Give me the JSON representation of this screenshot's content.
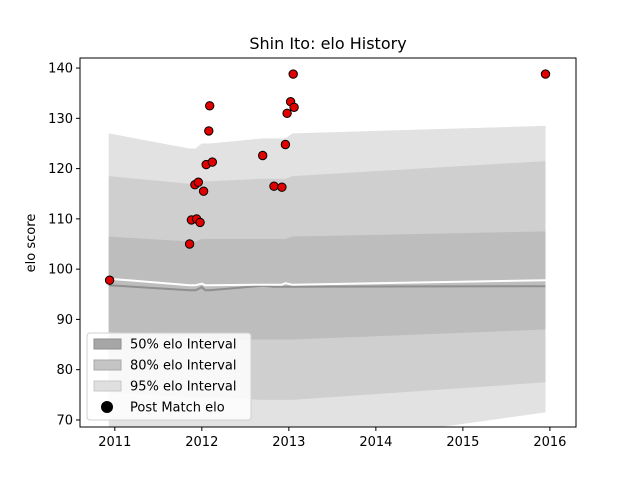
{
  "chart_data": {
    "type": "scatter",
    "title": "Shin Ito: elo History",
    "ylabel": "elo score",
    "xlabel": "",
    "xlim": [
      2010.6,
      2016.3
    ],
    "ylim": [
      68.6,
      142.0
    ],
    "xticks": [
      2011,
      2012,
      2013,
      2014,
      2015,
      2016
    ],
    "yticks": [
      70,
      80,
      90,
      100,
      110,
      120,
      130,
      140
    ],
    "grid": false,
    "legend_position": "lower-left",
    "legend": [
      {
        "label": "50% elo Interval",
        "color": "#aaaaaa"
      },
      {
        "label": "80% elo Interval",
        "color": "#c8c8c8"
      },
      {
        "label": "95% elo Interval",
        "color": "#e2e2e2"
      },
      {
        "label": "Post Match elo",
        "color": "#000000"
      }
    ],
    "intervals": {
      "x": [
        2010.93,
        2011.86,
        2011.93,
        2012.0,
        2012.04,
        2012.09,
        2012.7,
        2012.83,
        2012.92,
        2012.96,
        2013.04,
        2015.95
      ],
      "p95_upper": [
        127,
        124,
        124,
        125,
        125,
        125,
        126,
        126,
        126,
        126,
        127,
        128.5
      ],
      "p80_upper": [
        118.5,
        117,
        117,
        117.5,
        117.5,
        117.5,
        118,
        118,
        118,
        118,
        118.5,
        121.5
      ],
      "p50_upper": [
        106.5,
        105.5,
        105.5,
        106,
        106,
        106,
        106,
        106,
        106,
        106,
        106.5,
        107.5
      ],
      "p50_lower": [
        87.5,
        86.5,
        86.5,
        86,
        86,
        86,
        86,
        86,
        86,
        86,
        86,
        88
      ],
      "p80_lower": [
        75.5,
        74.5,
        74.5,
        74.5,
        74.5,
        74.5,
        74,
        74,
        74,
        74,
        74,
        77.5
      ],
      "p95_lower": [
        66.5,
        65,
        65,
        65,
        65,
        65,
        64.5,
        64.5,
        64.5,
        64.5,
        64.5,
        71.5
      ],
      "median": [
        96.8,
        95.8,
        95.8,
        96.4,
        95.8,
        95.8,
        96.7,
        96.5,
        96.5,
        96.5,
        96.5,
        96.6
      ],
      "mean": [
        98.1,
        96.8,
        96.8,
        97.1,
        96.8,
        96.8,
        96.9,
        96.9,
        96.9,
        97.2,
        96.9,
        97.8
      ]
    },
    "points": {
      "name": "Post Match elo",
      "x": [
        2010.94,
        2011.86,
        2011.88,
        2011.92,
        2011.94,
        2011.96,
        2011.98,
        2012.02,
        2012.05,
        2012.08,
        2012.09,
        2012.12,
        2012.7,
        2012.83,
        2012.92,
        2012.96,
        2012.98,
        2013.02,
        2013.05,
        2013.06,
        2015.95
      ],
      "y": [
        97.8,
        105.0,
        109.8,
        116.8,
        110.0,
        117.3,
        109.3,
        115.5,
        120.8,
        127.5,
        132.5,
        121.3,
        122.6,
        116.5,
        116.3,
        124.8,
        131.0,
        133.3,
        138.8,
        132.2,
        138.8
      ],
      "color": "#e00000"
    }
  }
}
